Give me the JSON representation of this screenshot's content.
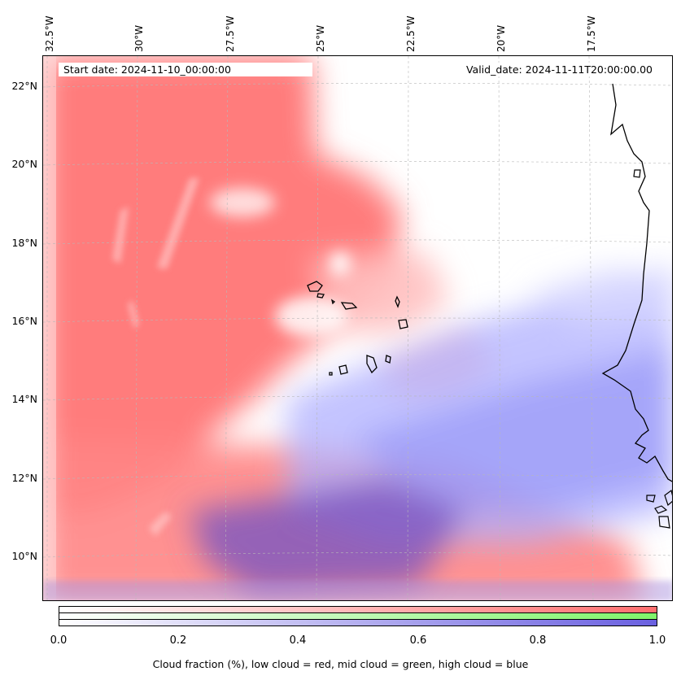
{
  "header": {
    "lon_labels": [
      "32.5°W",
      "30°W",
      "27.5°W",
      "25°W",
      "22.5°W",
      "20°W",
      "17.5°W"
    ],
    "lat_labels": [
      "22°N",
      "20°N",
      "18°N",
      "16°N",
      "14°N",
      "12°N",
      "10°N"
    ]
  },
  "map": {
    "start_date": "Start date: 2024-11-10_00:00:00",
    "valid_date": "Valid_date: 2024-11-11T20:00:00.00"
  },
  "legend": {
    "ticks": [
      "0.0",
      "0.2",
      "0.4",
      "0.6",
      "0.8",
      "1.0"
    ],
    "title": "Cloud fraction (%), low cloud = red, mid cloud = green, high cloud = blue",
    "colors": {
      "low": "#ff7070",
      "mid": "#80ff70",
      "high": "#6a60e0"
    }
  }
}
